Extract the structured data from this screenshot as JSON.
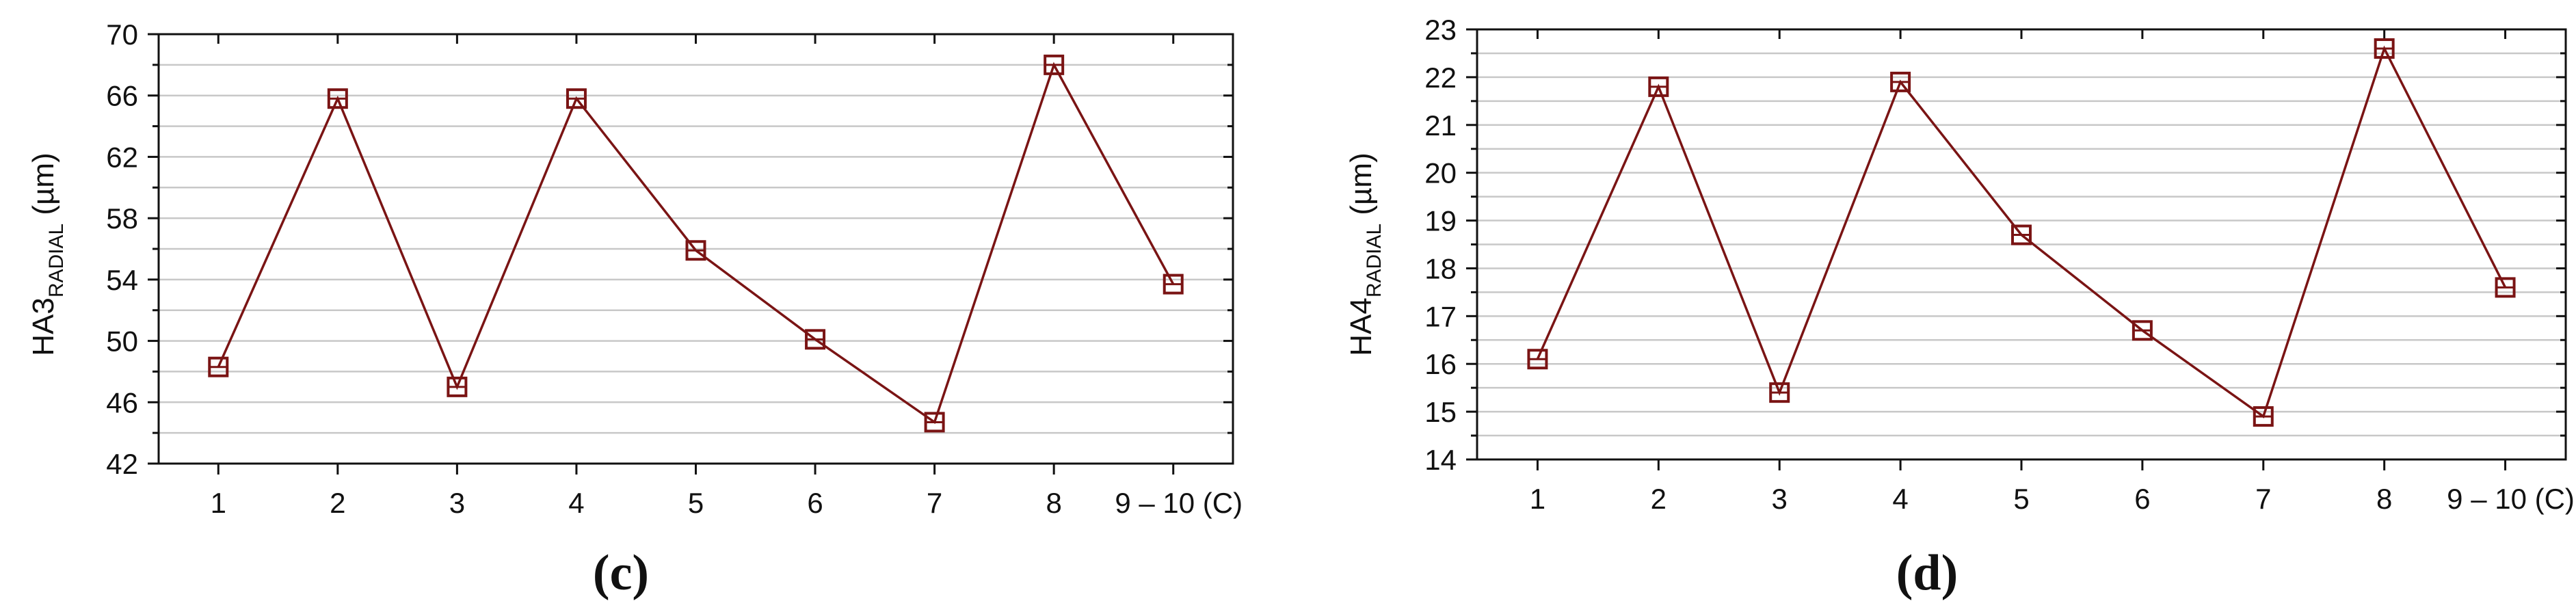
{
  "figure": {
    "panels": [
      {
        "label": "(c)",
        "ylabel_main": "HA3",
        "ylabel_sub": "RADIAL",
        "ylabel_unit": " (µm)"
      },
      {
        "label": "(d)",
        "ylabel_main": "HA4",
        "ylabel_sub": "RADIAL",
        "ylabel_unit": " (µm)"
      }
    ]
  },
  "chart_data": [
    {
      "type": "line",
      "categories": [
        "1",
        "2",
        "3",
        "4",
        "5",
        "6",
        "7",
        "8",
        "9 – 10 (C)"
      ],
      "series": [
        {
          "values": [
            48.3,
            65.8,
            47.0,
            65.8,
            55.9,
            50.1,
            44.7,
            68.0,
            53.7
          ]
        }
      ],
      "ylim": [
        42,
        70
      ],
      "yticks": [
        42,
        46,
        50,
        54,
        58,
        62,
        66,
        70
      ],
      "ylabel": "HA3RADIAL (µm)",
      "grid": true,
      "marker": "square",
      "color": "#7a1414"
    },
    {
      "type": "line",
      "categories": [
        "1",
        "2",
        "3",
        "4",
        "5",
        "6",
        "7",
        "8",
        "9 – 10 (C)"
      ],
      "series": [
        {
          "values": [
            16.1,
            21.8,
            15.4,
            21.9,
            18.7,
            16.7,
            14.9,
            22.6,
            17.6
          ]
        }
      ],
      "ylim": [
        14,
        23
      ],
      "yticks": [
        14,
        15,
        16,
        17,
        18,
        19,
        20,
        21,
        22,
        23
      ],
      "ylabel": "HA4RADIAL (µm)",
      "grid": true,
      "marker": "square",
      "color": "#7a1414"
    }
  ]
}
